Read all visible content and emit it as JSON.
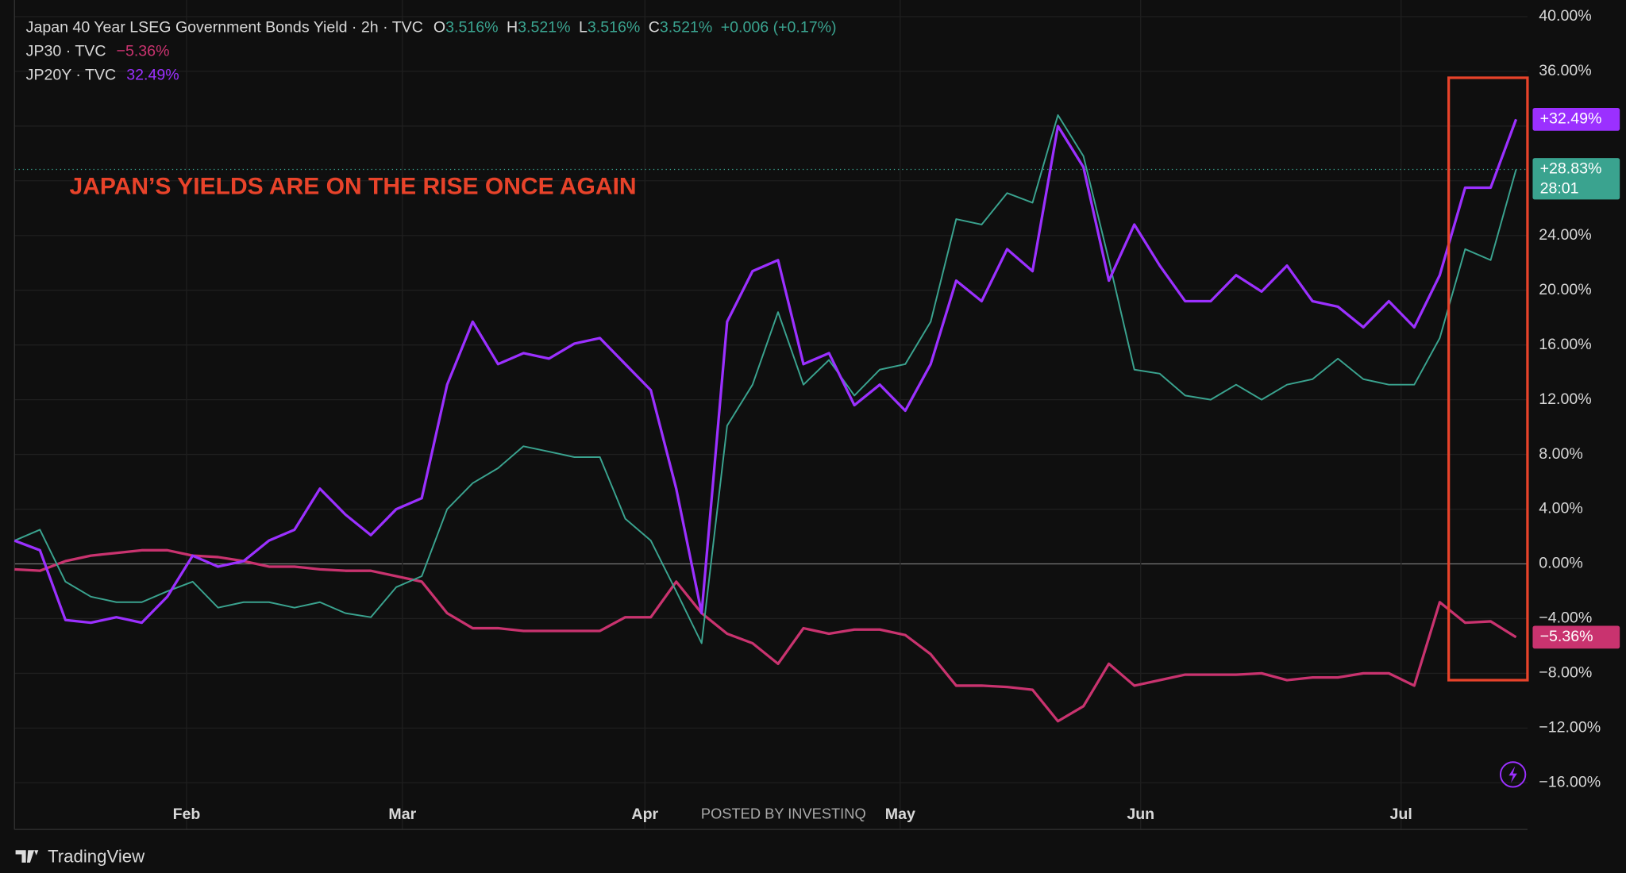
{
  "chart_data": {
    "type": "line",
    "annotation": "JAPAN’S YIELDS ARE ON THE RISE ONCE AGAIN",
    "watermark": "POSTED BY INVESTINQ",
    "brand": "TradingView",
    "ohlc": [
      {
        "key": "O",
        "value": "3.516%"
      },
      {
        "key": "H",
        "value": "3.521%"
      },
      {
        "key": "L",
        "value": "3.516%"
      },
      {
        "key": "C",
        "value": "3.521%"
      }
    ],
    "change": "+0.006 (+0.17%)",
    "xlim": [
      0,
      59
    ],
    "xticks": [
      {
        "value": 6.76,
        "label": "Feb"
      },
      {
        "value": 15.24,
        "label": "Mar"
      },
      {
        "value": 24.77,
        "label": "Apr"
      },
      {
        "value": 34.8,
        "label": "May"
      },
      {
        "value": 44.25,
        "label": "Jun"
      },
      {
        "value": 54.48,
        "label": "Jul"
      }
    ],
    "ylim": [
      -16,
      40
    ],
    "yticks": [
      {
        "value": 40,
        "label": "40.00%"
      },
      {
        "value": 36,
        "label": "36.00%"
      },
      {
        "value": 32,
        "label": "32.00%"
      },
      {
        "value": 28,
        "label": "28.00%"
      },
      {
        "value": 24,
        "label": "24.00%"
      },
      {
        "value": 20,
        "label": "20.00%"
      },
      {
        "value": 16,
        "label": "16.00%"
      },
      {
        "value": 12,
        "label": "12.00%"
      },
      {
        "value": 8,
        "label": "8.00%"
      },
      {
        "value": 4,
        "label": "4.00%"
      },
      {
        "value": 0,
        "label": "0.00%"
      },
      {
        "value": -4,
        "label": "−4.00%"
      },
      {
        "value": -8,
        "label": "−8.00%"
      },
      {
        "value": -12,
        "label": "−12.00%"
      },
      {
        "value": -16,
        "label": "−16.00%"
      }
    ],
    "grid": true,
    "series": [
      {
        "name": "Japan 40 Year LSEG Government Bonds Yield · 2h · TVC",
        "color": "#3aa38f",
        "tag": "+28.83%",
        "countdown": "28:01",
        "values": [
          1.7,
          2.5,
          -1.3,
          -2.4,
          -2.8,
          -2.8,
          -2,
          -1.3,
          -3.2,
          -2.8,
          -2.8,
          -3.2,
          -2.8,
          -3.6,
          -3.9,
          -1.7,
          -0.9,
          4,
          5.9,
          7,
          8.6,
          8.2,
          7.8,
          7.8,
          3.3,
          1.7,
          -2,
          -5.8,
          10.1,
          13.1,
          18.4,
          13.1,
          14.9,
          12.3,
          14.2,
          14.6,
          17.7,
          25.2,
          24.8,
          27.1,
          26.4,
          32.8,
          29.8,
          22.2,
          14.2,
          13.9,
          12.3,
          12,
          13.1,
          12,
          13.1,
          13.5,
          15,
          13.5,
          13.1,
          13.1,
          16.5,
          23,
          22.2,
          28.83
        ]
      },
      {
        "name": "JP30 · TVC",
        "color": "#c9336f",
        "legend_value": "−5.36%",
        "tag": "−5.36%",
        "values": [
          -0.4,
          -0.5,
          0.2,
          0.6,
          0.8,
          1,
          1,
          0.6,
          0.5,
          0.2,
          -0.2,
          -0.2,
          -0.4,
          -0.5,
          -0.5,
          -0.9,
          -1.3,
          -3.6,
          -4.7,
          -4.7,
          -4.9,
          -4.9,
          -4.9,
          -4.9,
          -3.9,
          -3.9,
          -1.3,
          -3.6,
          -5.1,
          -5.8,
          -7.3,
          -4.7,
          -5.1,
          -4.8,
          -4.8,
          -5.2,
          -6.6,
          -8.9,
          -8.9,
          -9,
          -9.2,
          -11.5,
          -10.4,
          -7.3,
          -8.9,
          -8.5,
          -8.1,
          -8.1,
          -8.1,
          -8,
          -8.5,
          -8.3,
          -8.3,
          -8,
          -8,
          -8.9,
          -2.8,
          -4.3,
          -4.2,
          -5.36
        ]
      },
      {
        "name": "JP20Y · TVC",
        "color": "#9b30ff",
        "legend_value": "32.49%",
        "tag": "+32.49%",
        "values": [
          1.7,
          1,
          -4.1,
          -4.3,
          -3.9,
          -4.3,
          -2.4,
          0.6,
          -0.2,
          0.2,
          1.7,
          2.5,
          5.5,
          3.6,
          2.1,
          4,
          4.8,
          13.1,
          17.7,
          14.6,
          15.4,
          15,
          16.1,
          16.5,
          14.6,
          12.7,
          5.5,
          -3.6,
          17.7,
          21.4,
          22.2,
          14.6,
          15.4,
          11.6,
          13.1,
          11.2,
          14.6,
          20.7,
          19.2,
          23,
          21.4,
          32,
          29,
          20.7,
          24.8,
          21.8,
          19.2,
          19.2,
          21.1,
          19.9,
          21.8,
          19.2,
          18.8,
          17.3,
          19.2,
          17.3,
          21.1,
          27.5,
          27.5,
          32.49
        ]
      }
    ]
  }
}
